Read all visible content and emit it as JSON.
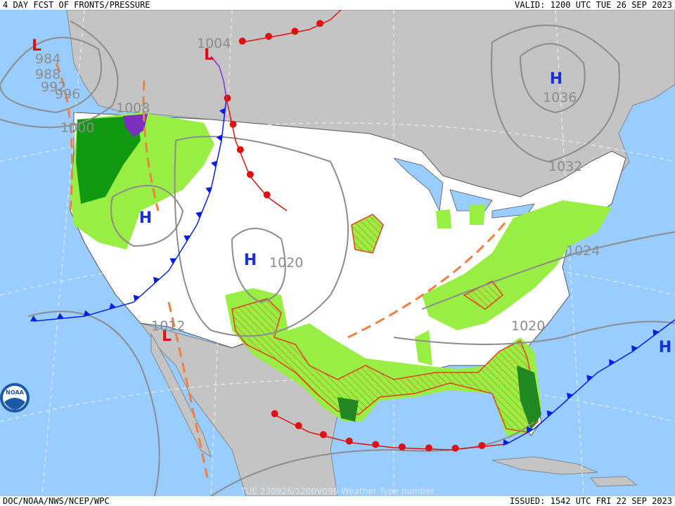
{
  "header": {
    "title": "4 DAY FCST OF FRONTS/PRESSURE",
    "valid": "VALID: 1200 UTC TUE 26 SEP 2023"
  },
  "footer": {
    "agency": "DOC/NOAA/NWS/NCEP/WPC",
    "issued": "ISSUED: 1542 UTC FRI 22 SEP 2023",
    "product": "TUE 230926/1200V096  Weather Type number"
  },
  "logo": {
    "text": "NOAA"
  },
  "pressure_centers": [
    {
      "symbol": "L"
    },
    {
      "symbol": "L"
    },
    {
      "symbol": "L"
    },
    {
      "symbol": "H"
    },
    {
      "symbol": "H"
    },
    {
      "symbol": "H"
    },
    {
      "symbol": "H"
    }
  ],
  "isobar_labels": [
    "1004",
    "984",
    "988",
    "992",
    "996",
    "1000",
    "1008",
    "1036",
    "1020",
    "1012",
    "1024",
    "1020",
    "1032"
  ]
}
